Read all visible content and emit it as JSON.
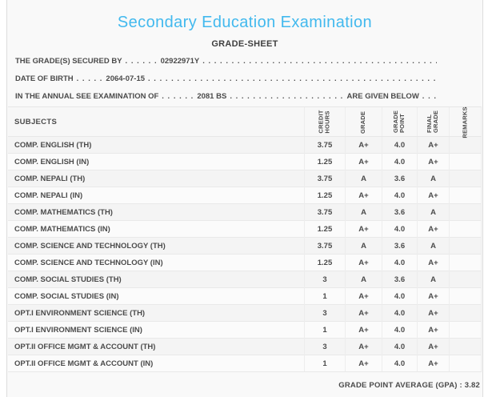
{
  "header": {
    "title": "Secondary Education Examination",
    "subtitle": "GRADE-SHEET"
  },
  "info": {
    "leader_dots": ". . . . . . . . . . . . . . . . . . . . . . . . . . . . . . . . . . . . . . . . . . . . . . . . . . . . . . . . . . . . . . . . . . . . . . . . . . . . . . . .",
    "lines": [
      {
        "label": "THE GRADE(S) SECURED BY",
        "dots": ". . . . . .",
        "value": "02922971Y"
      },
      {
        "label": "DATE OF BIRTH",
        "dots": ". . . . .",
        "value": "2064-07-15"
      },
      {
        "label": "IN THE ANNUAL SEE EXAMINATION OF",
        "dots": ". . . . . .",
        "value": "2081 BS",
        "suffix": "ARE GIVEN BELOW",
        "suffix_dots": ". . ."
      }
    ]
  },
  "table": {
    "subjects_header": "SUBJECTS",
    "columns": [
      {
        "line1": "CREDIT",
        "line2": "HOURS"
      },
      {
        "line1": "GRADE"
      },
      {
        "line1": "GRADE",
        "line2": "POINT"
      },
      {
        "line1": "FINAL",
        "line2": "GRADE"
      },
      {
        "line1": "REMARKS"
      }
    ],
    "rows": [
      {
        "subject": "COMP. ENGLISH (TH)",
        "credit_hours": "3.75",
        "grade": "A+",
        "grade_point": "4.0",
        "final_grade": "A+",
        "remarks": ""
      },
      {
        "subject": "COMP. ENGLISH (IN)",
        "credit_hours": "1.25",
        "grade": "A+",
        "grade_point": "4.0",
        "final_grade": "A+",
        "remarks": ""
      },
      {
        "subject": "COMP. NEPALI (TH)",
        "credit_hours": "3.75",
        "grade": "A",
        "grade_point": "3.6",
        "final_grade": "A",
        "remarks": ""
      },
      {
        "subject": "COMP. NEPALI (IN)",
        "credit_hours": "1.25",
        "grade": "A+",
        "grade_point": "4.0",
        "final_grade": "A+",
        "remarks": ""
      },
      {
        "subject": "COMP. MATHEMATICS (TH)",
        "credit_hours": "3.75",
        "grade": "A",
        "grade_point": "3.6",
        "final_grade": "A",
        "remarks": ""
      },
      {
        "subject": "COMP. MATHEMATICS (IN)",
        "credit_hours": "1.25",
        "grade": "A+",
        "grade_point": "4.0",
        "final_grade": "A+",
        "remarks": ""
      },
      {
        "subject": "COMP. SCIENCE AND TECHNOLOGY (TH)",
        "credit_hours": "3.75",
        "grade": "A",
        "grade_point": "3.6",
        "final_grade": "A",
        "remarks": ""
      },
      {
        "subject": "COMP. SCIENCE AND TECHNOLOGY (IN)",
        "credit_hours": "1.25",
        "grade": "A+",
        "grade_point": "4.0",
        "final_grade": "A+",
        "remarks": ""
      },
      {
        "subject": "COMP. SOCIAL STUDIES (TH)",
        "credit_hours": "3",
        "grade": "A",
        "grade_point": "3.6",
        "final_grade": "A",
        "remarks": ""
      },
      {
        "subject": "COMP. SOCIAL STUDIES (IN)",
        "credit_hours": "1",
        "grade": "A+",
        "grade_point": "4.0",
        "final_grade": "A+",
        "remarks": ""
      },
      {
        "subject": "OPT.I ENVIRONMENT SCIENCE (TH)",
        "credit_hours": "3",
        "grade": "A+",
        "grade_point": "4.0",
        "final_grade": "A+",
        "remarks": ""
      },
      {
        "subject": "OPT.I ENVIRONMENT SCIENCE (IN)",
        "credit_hours": "1",
        "grade": "A+",
        "grade_point": "4.0",
        "final_grade": "A+",
        "remarks": ""
      },
      {
        "subject": "OPT.II OFFICE MGMT & ACCOUNT (TH)",
        "credit_hours": "3",
        "grade": "A+",
        "grade_point": "4.0",
        "final_grade": "A+",
        "remarks": ""
      },
      {
        "subject": "OPT.II OFFICE MGMT & ACCOUNT (IN)",
        "credit_hours": "1",
        "grade": "A+",
        "grade_point": "4.0",
        "final_grade": "A+",
        "remarks": ""
      }
    ]
  },
  "footer": {
    "gpa_text": "GRADE POINT AVERAGE (GPA) : 3.82"
  },
  "colors": {
    "title_accent": "#42b9ee",
    "text": "#4b4b4b",
    "border": "#e7e7e7"
  }
}
